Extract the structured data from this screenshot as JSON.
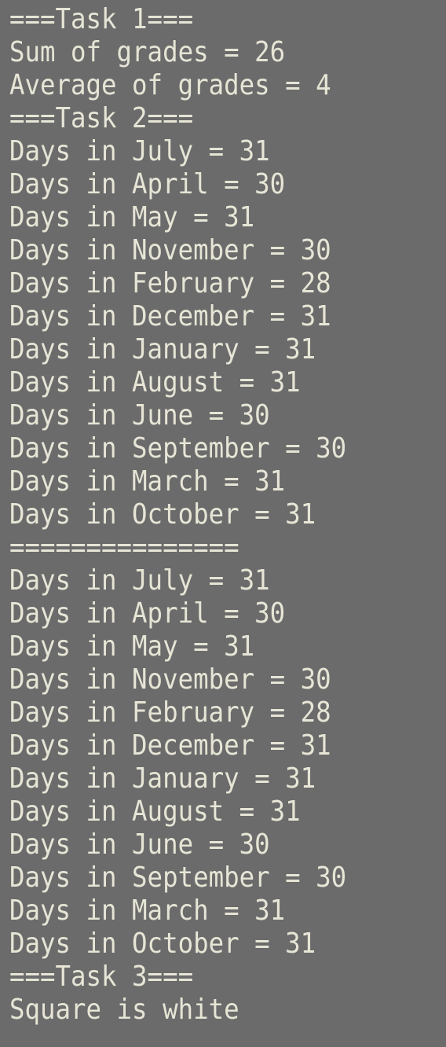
{
  "terminal": {
    "lines": [
      "===Task 1===",
      "Sum of grades = 26",
      "Average of grades = 4",
      "===Task 2===",
      "Days in July = 31",
      "Days in April = 30",
      "Days in May = 31",
      "Days in November = 30",
      "Days in February = 28",
      "Days in December = 31",
      "Days in January = 31",
      "Days in August = 31",
      "Days in June = 30",
      "Days in September = 30",
      "Days in March = 31",
      "Days in October = 31",
      "===============",
      "Days in July = 31",
      "Days in April = 30",
      "Days in May = 31",
      "Days in November = 30",
      "Days in February = 28",
      "Days in December = 31",
      "Days in January = 31",
      "Days in August = 31",
      "Days in June = 30",
      "Days in September = 30",
      "Days in March = 31",
      "Days in October = 31",
      "===Task 3===",
      "Square is white"
    ],
    "background_color": "#6b6b6b",
    "text_color": "#e6e5d6"
  }
}
